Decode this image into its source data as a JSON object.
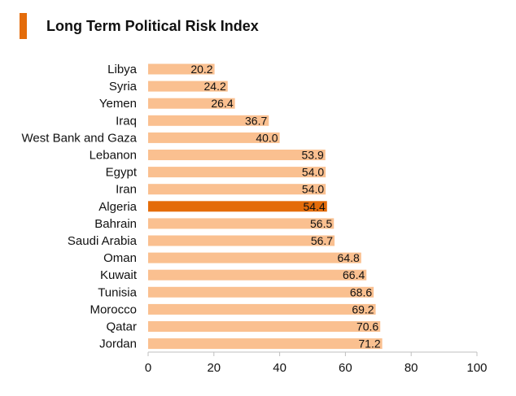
{
  "colors": {
    "bar": "#FAC090",
    "highlight": "#E46C0A",
    "axis": "#BFBFBF",
    "accent": "#E46C0A"
  },
  "chart_data": {
    "type": "bar",
    "orientation": "horizontal",
    "title": "Long Term Political Risk Index",
    "categories": [
      "Libya",
      "Syria",
      "Yemen",
      "Iraq",
      "West Bank and Gaza",
      "Lebanon",
      "Egypt",
      "Iran",
      "Algeria",
      "Bahrain",
      "Saudi Arabia",
      "Oman",
      "Kuwait",
      "Tunisia",
      "Morocco",
      "Qatar",
      "Jordan"
    ],
    "values": [
      20.2,
      24.2,
      26.4,
      36.7,
      40.0,
      53.9,
      54.0,
      54.0,
      54.4,
      56.5,
      56.7,
      64.8,
      66.4,
      68.6,
      69.2,
      70.6,
      71.2
    ],
    "value_labels": [
      "20.2",
      "24.2",
      "26.4",
      "36.7",
      "40.0",
      "53.9",
      "54.0",
      "54.0",
      "54.4",
      "56.5",
      "56.7",
      "64.8",
      "66.4",
      "68.6",
      "69.2",
      "70.6",
      "71.2"
    ],
    "highlight": "Algeria",
    "xlim": [
      0,
      100
    ],
    "xticks": [
      "0",
      "20",
      "40",
      "60",
      "80",
      "100"
    ],
    "xtick_values": [
      0,
      20,
      40,
      60,
      80,
      100
    ],
    "grid": false,
    "xlabel": "",
    "ylabel": ""
  }
}
